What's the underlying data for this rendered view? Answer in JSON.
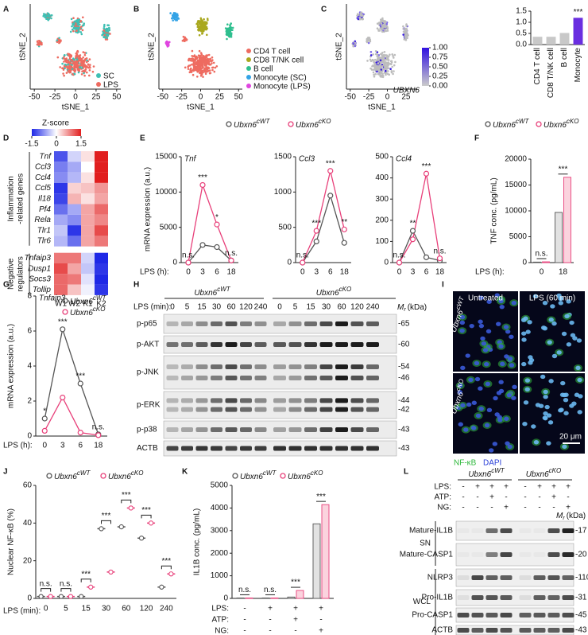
{
  "genotypes": [
    {
      "gene": "Ubxn6",
      "genotype": "cWT",
      "color": "#555555"
    },
    {
      "gene": "Ubxn6",
      "genotype": "cKO",
      "color": "#e8407a"
    }
  ],
  "mr": {
    "symbol": "M",
    "sub": "r",
    "unit": "(kDa)"
  },
  "A": {
    "letter": "A",
    "x_label": "tSNE_1",
    "y_label": "tSNE_2",
    "xlim": [
      -55,
      55
    ],
    "xticks": [
      -50,
      -25,
      0,
      25,
      50
    ],
    "legend": [
      {
        "name": "SC",
        "color": "#3fbfb3"
      },
      {
        "name": "LPS",
        "color": "#ee6b60"
      }
    ]
  },
  "B": {
    "letter": "B",
    "x_label": "tSNE_1",
    "y_label": "tSNE_2",
    "xlim": [
      -55,
      55
    ],
    "xticks": [
      -50,
      -25,
      0,
      25,
      50
    ],
    "legend": [
      {
        "name": "CD4 T cell",
        "color": "#ee6b60"
      },
      {
        "name": "CD8 T/NK cell",
        "color": "#a9a81e"
      },
      {
        "name": "B cell",
        "color": "#2fbf8f"
      },
      {
        "name": "Monocyte (SC)",
        "color": "#33a3e6"
      },
      {
        "name": "Monocyte (LPS)",
        "color": "#e045e0"
      }
    ]
  },
  "C": {
    "letter": "C",
    "x_label": "tSNE_1",
    "y_label": "tSNE_2",
    "xlim": [
      -55,
      40
    ],
    "xticks": [
      -50,
      -25,
      0,
      25
    ],
    "gene": "UBXN6",
    "colorbar_ticks": [
      {
        "value": 0,
        "label": "0.00"
      },
      {
        "value": 0.25,
        "label": "0.25"
      },
      {
        "value": 0.5,
        "label": "0.50"
      },
      {
        "value": 0.75,
        "label": "0.75"
      },
      {
        "value": 1,
        "label": "1.00"
      }
    ],
    "bar": {
      "type": "bar",
      "categories": [
        "CD4 T cell",
        "CD8 T/NK cell",
        "B cell",
        "Monocyte"
      ],
      "values": [
        0.35,
        0.35,
        0.52,
        1.2
      ],
      "colors": [
        "#c8c8c8",
        "#c8c8c8",
        "#c8c8c8",
        "#6a2ee0"
      ],
      "ylim": [
        0,
        1.5
      ],
      "yticks": [
        {
          "value": 0,
          "label": "0.0"
        },
        0.5,
        {
          "value": 1,
          "label": "1.0"
        },
        1.5
      ],
      "annotations": [
        null,
        null,
        null,
        "***"
      ]
    }
  },
  "D": {
    "letter": "D",
    "colorbar_title": "Z-score",
    "colorbar_ticks": [
      -1.5,
      0,
      1.5
    ],
    "columns": [
      "W1",
      "W2",
      "K1",
      "K2"
    ],
    "groups": [
      {
        "name_lines": [
          "Inflammation",
          "-related genes"
        ],
        "genes": [
          "Tnf",
          "Ccl3",
          "Ccl4",
          "Ccl5",
          "Il18",
          "Pf4",
          "Rela",
          "Tlr1",
          "Tlr6"
        ],
        "values": [
          [
            -1.2,
            -0.3,
            0.2,
            1.5
          ],
          [
            -0.9,
            -0.6,
            0.0,
            1.5
          ],
          [
            -0.8,
            -0.5,
            0.2,
            1.5
          ],
          [
            -1.4,
            0.3,
            0.4,
            0.7
          ],
          [
            -1.3,
            0.5,
            0.2,
            0.6
          ],
          [
            -1.0,
            -0.6,
            0.6,
            1.0
          ],
          [
            -0.6,
            -0.8,
            0.6,
            0.8
          ],
          [
            -0.4,
            -1.4,
            0.6,
            1.2
          ],
          [
            -0.5,
            -1.0,
            0.6,
            0.9
          ]
        ]
      },
      {
        "name_lines": [
          "Negative",
          "regulators"
        ],
        "genes": [
          "Tnfaip3",
          "Dusp1",
          "Socs3",
          "Tollip"
        ],
        "values": [
          [
            0.9,
            0.9,
            -0.3,
            -1.5
          ],
          [
            1.2,
            0.6,
            -0.4,
            -1.4
          ],
          [
            1.0,
            0.9,
            -0.2,
            -1.5
          ],
          [
            1.0,
            0.4,
            -0.1,
            -1.4
          ]
        ]
      }
    ]
  },
  "E": {
    "letter": "E",
    "x_label": "LPS (h):",
    "y_label": "mRNA expression (a.u.)",
    "categories": [
      "0",
      "3",
      "6",
      "18"
    ],
    "plots": [
      {
        "type": "line",
        "title": "Tnf",
        "ylim": [
          0,
          15000
        ],
        "yticks": [
          0,
          5000,
          10000,
          15000
        ],
        "series": [
          [
            0,
            2500,
            2200,
            300
          ],
          [
            0,
            11000,
            5400,
            300
          ]
        ],
        "annotations": [
          "n.s.",
          "***",
          "*",
          "n.s."
        ]
      },
      {
        "type": "line",
        "title": "Ccl3",
        "ylim": [
          0,
          1500
        ],
        "yticks": [
          0,
          500,
          1000,
          1500
        ],
        "series": [
          [
            0,
            300,
            950,
            280
          ],
          [
            0,
            450,
            1300,
            470
          ]
        ],
        "annotations": [
          "n.s.",
          "***",
          "***",
          "**"
        ]
      },
      {
        "type": "line",
        "title": "Ccl4",
        "ylim": [
          0,
          500
        ],
        "yticks": [
          0,
          100,
          200,
          300,
          400,
          500
        ],
        "series": [
          [
            0,
            150,
            25,
            10
          ],
          [
            0,
            110,
            420,
            20
          ]
        ],
        "annotations": [
          "n.s.",
          "**",
          "***",
          "n.s."
        ]
      }
    ]
  },
  "F": {
    "letter": "F",
    "type": "bar",
    "x_label": "LPS (h):",
    "y_label": "TNF conc. (pg/mL)",
    "categories": [
      "0",
      "18"
    ],
    "ylim": [
      0,
      20000
    ],
    "yticks": [
      0,
      5000,
      10000,
      15000,
      20000
    ],
    "series": [
      [
        100,
        9700
      ],
      [
        150,
        16500
      ]
    ],
    "annotations": [
      "n.s.",
      "***"
    ]
  },
  "G": {
    "letter": "G",
    "type": "line",
    "title": "Tnfaip3",
    "x_label": "LPS (h):",
    "y_label": "mRNA expression (a.u.)",
    "categories": [
      "0",
      "3",
      "6",
      "18"
    ],
    "ylim": [
      0,
      8
    ],
    "yticks": [
      0,
      2,
      4,
      6,
      8
    ],
    "series": [
      [
        1.0,
        6.1,
        3.0,
        0.1
      ],
      [
        0.3,
        2.2,
        0.2,
        0.05
      ]
    ],
    "annotations": [
      "*",
      "***",
      "***",
      "n.s."
    ]
  },
  "H": {
    "letter": "H",
    "x_label": "LPS (min):",
    "lanes": [
      "0",
      "5",
      "15",
      "30",
      "60",
      "120",
      "240"
    ],
    "rows": [
      {
        "name": "p-p65",
        "mr": [
          "-65"
        ]
      },
      {
        "name": "p-AKT",
        "mr": [
          "-60"
        ]
      },
      {
        "name": "p-JNK",
        "mr": [
          "-54",
          "-46"
        ]
      },
      {
        "name": "p-ERK",
        "mr": [
          "-44",
          "-42"
        ]
      },
      {
        "name": "p-p38",
        "mr": [
          "-43"
        ]
      },
      {
        "name": "ACTB",
        "mr": [
          "-43"
        ]
      }
    ]
  },
  "I": {
    "letter": "I",
    "columns": [
      "Untreated",
      "LPS (60 min)"
    ],
    "scale": "20 μm",
    "stains": [
      "NF-κB",
      "DAPI"
    ]
  },
  "J": {
    "letter": "J",
    "type": "box",
    "x_label": "LPS (min):",
    "y_label": "Nuclear NF-κB (%)",
    "categories": [
      "0",
      "5",
      "15",
      "30",
      "60",
      "120",
      "240"
    ],
    "ylim": [
      0,
      60
    ],
    "yticks": [
      0,
      20,
      40,
      60
    ],
    "series": [
      [
        1,
        1,
        1,
        37,
        38,
        32,
        6
      ],
      [
        1,
        1,
        6,
        14,
        48,
        40,
        13
      ]
    ],
    "annotations": [
      "n.s.",
      "n.s.",
      "***",
      "***",
      "***",
      "***",
      "***"
    ]
  },
  "K": {
    "letter": "K",
    "type": "bar",
    "y_label": "IL1B conc. (pg/mL)",
    "ylim": [
      0,
      5000
    ],
    "yticks": [
      0,
      1000,
      2000,
      3000,
      4000,
      5000
    ],
    "conditions": [
      {
        "name": "LPS:",
        "signs": [
          "-",
          "+",
          "+",
          "+"
        ]
      },
      {
        "name": "ATP:",
        "signs": [
          "-",
          "-",
          "+",
          "-"
        ]
      },
      {
        "name": "NG:",
        "signs": [
          "-",
          "-",
          "-",
          "+"
        ]
      }
    ],
    "series": [
      [
        20,
        20,
        60,
        3300
      ],
      [
        20,
        20,
        350,
        4150
      ]
    ],
    "annotations": [
      "n.s.",
      "n.s.",
      "***",
      "***"
    ]
  },
  "L": {
    "letter": "L",
    "conditions": [
      {
        "name": "LPS:",
        "signs": [
          "-",
          "+",
          "+",
          "+",
          "-",
          "+",
          "+",
          "+"
        ]
      },
      {
        "name": "ATP:",
        "signs": [
          "-",
          "-",
          "+",
          "-",
          "-",
          "-",
          "+",
          "-"
        ]
      },
      {
        "name": "NG:",
        "signs": [
          "-",
          "-",
          "-",
          "+",
          "-",
          "-",
          "-",
          "+"
        ]
      }
    ],
    "fractions": [
      {
        "name": "SN",
        "rows": [
          {
            "name": "Mature-IL1B",
            "mr": "-17"
          },
          {
            "name": "Mature-CASP1",
            "mr": "-20"
          }
        ]
      },
      {
        "name": "WCL",
        "rows": [
          {
            "name": "NLRP3",
            "mr": "-110"
          },
          {
            "name": "Pro-IL1B",
            "mr": "-31"
          },
          {
            "name": "Pro-CASP1",
            "mr": "-45"
          },
          {
            "name": "ACTB",
            "mr": "-43"
          }
        ]
      }
    ]
  }
}
